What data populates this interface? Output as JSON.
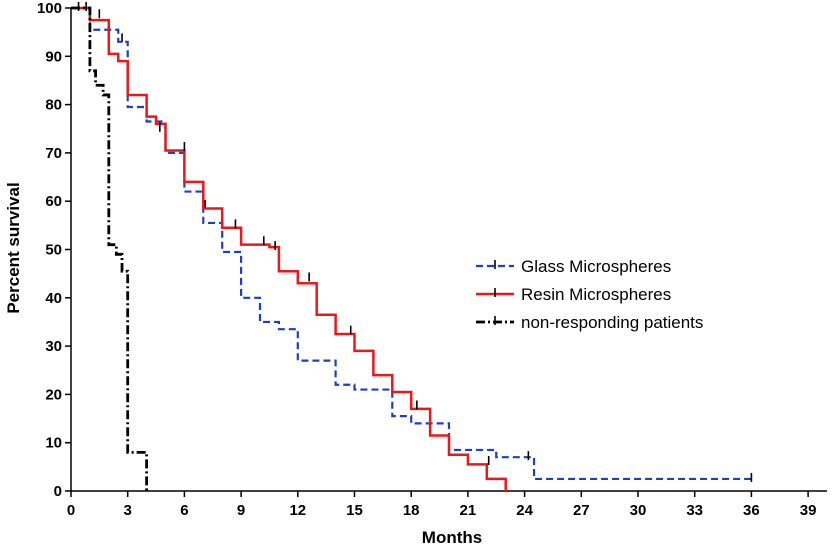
{
  "chart_data": {
    "type": "line",
    "subtype": "kaplan-meier step",
    "title": "",
    "xlabel": "Months",
    "ylabel": "Percent survival",
    "xlim": [
      0,
      40
    ],
    "ylim": [
      0,
      100
    ],
    "x_ticks": [
      0,
      3,
      6,
      9,
      12,
      15,
      18,
      21,
      24,
      27,
      30,
      33,
      36,
      39
    ],
    "y_ticks": [
      0,
      10,
      20,
      30,
      40,
      50,
      60,
      70,
      80,
      90,
      100
    ],
    "legend_position": "center-right",
    "series": [
      {
        "name": "Glass Microspheres",
        "color": "#1f3fbf",
        "line_style": "dashed",
        "x": [
          0,
          1,
          2.5,
          3,
          4,
          5,
          6,
          7,
          8,
          9,
          10,
          11,
          12,
          14,
          15,
          16.5,
          17,
          18,
          20,
          21,
          22.5,
          24.5,
          36
        ],
        "y": [
          100,
          95.5,
          93,
          79.5,
          76.5,
          70,
          62,
          55.5,
          49.5,
          40,
          35,
          33.5,
          27,
          22,
          21,
          21,
          15.5,
          14,
          8.5,
          8.5,
          7,
          2.5,
          2.5
        ],
        "censor_marks": [
          [
            2.7,
            93.5
          ],
          [
            7.1,
            59
          ],
          [
            24.2,
            7
          ],
          [
            36,
            2.5
          ]
        ]
      },
      {
        "name": "Resin Microspheres",
        "color": "#e8191b",
        "line_style": "solid",
        "x": [
          0,
          1,
          2,
          2.5,
          3,
          4,
          4.5,
          5,
          6,
          7,
          8,
          9,
          10.5,
          11,
          12,
          13,
          14,
          15,
          16,
          17,
          18,
          19,
          20,
          21,
          22,
          23
        ],
        "y": [
          100,
          97.5,
          90.5,
          89,
          82,
          77.5,
          76,
          70.5,
          64,
          58.5,
          54.5,
          51,
          50.5,
          45.5,
          43,
          36.5,
          32.5,
          29,
          24,
          20.5,
          17,
          11.5,
          7.5,
          5.5,
          2.5,
          0
        ],
        "censor_marks": [
          [
            0.8,
            100
          ],
          [
            1.5,
            98.5
          ],
          [
            4.7,
            75
          ],
          [
            6,
            71
          ],
          [
            8.7,
            55
          ],
          [
            10.2,
            51.5
          ],
          [
            10.8,
            50.5
          ],
          [
            12.6,
            44
          ],
          [
            14.8,
            33
          ],
          [
            18.3,
            17.5
          ],
          [
            22.1,
            6
          ]
        ]
      },
      {
        "name": "non-responding patients",
        "color": "#000000",
        "line_style": "dash-dot",
        "x": [
          0,
          1,
          1.3,
          1.7,
          2,
          2.4,
          2.7,
          3,
          4
        ],
        "y": [
          100,
          87,
          84,
          82,
          51,
          49,
          45.5,
          8,
          0
        ],
        "censor_marks": [
          [
            0.4,
            100
          ]
        ]
      }
    ]
  }
}
